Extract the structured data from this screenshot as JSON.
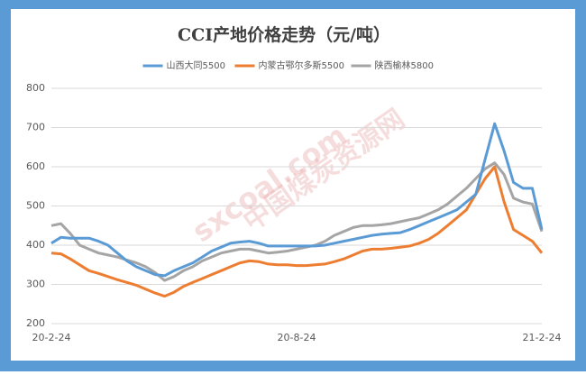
{
  "chart_data": {
    "type": "line",
    "title": "CCI产地价格走势（元/吨）",
    "watermark": [
      "sxcoal.com",
      "中国煤炭资源网"
    ],
    "categories": [
      "20-2-24",
      null,
      null,
      null,
      null,
      null,
      null,
      null,
      null,
      null,
      null,
      null,
      null,
      null,
      null,
      null,
      null,
      null,
      null,
      null,
      null,
      null,
      null,
      null,
      null,
      null,
      "20-8-24",
      null,
      null,
      null,
      null,
      null,
      null,
      null,
      null,
      null,
      null,
      null,
      null,
      null,
      null,
      null,
      null,
      null,
      null,
      null,
      null,
      null,
      null,
      null,
      null,
      null,
      "21-2-24"
    ],
    "series": [
      {
        "name": "山西大同5500",
        "color": "#5b9bd5",
        "values": [
          405,
          420,
          418,
          418,
          418,
          410,
          400,
          380,
          360,
          345,
          335,
          325,
          322,
          335,
          345,
          355,
          370,
          385,
          395,
          405,
          408,
          410,
          405,
          398,
          398,
          398,
          398,
          398,
          398,
          400,
          405,
          410,
          415,
          420,
          425,
          428,
          430,
          432,
          440,
          450,
          460,
          470,
          480,
          490,
          510,
          530,
          620,
          710,
          640,
          560,
          545,
          545,
          440
        ]
      },
      {
        "name": "内蒙古鄂尔多斯5500",
        "color": "#ed7d31",
        "values": [
          380,
          378,
          365,
          350,
          335,
          328,
          320,
          312,
          305,
          298,
          288,
          278,
          270,
          280,
          295,
          305,
          315,
          325,
          335,
          345,
          355,
          360,
          358,
          352,
          350,
          350,
          348,
          348,
          350,
          352,
          358,
          365,
          375,
          385,
          390,
          390,
          392,
          395,
          398,
          405,
          415,
          430,
          450,
          470,
          490,
          530,
          570,
          600,
          510,
          440,
          425,
          410,
          380
        ]
      },
      {
        "name": "陕西榆林5800",
        "color": "#a5a5a5",
        "values": [
          450,
          455,
          430,
          400,
          390,
          380,
          375,
          370,
          362,
          355,
          345,
          330,
          310,
          320,
          335,
          345,
          360,
          370,
          380,
          385,
          390,
          390,
          385,
          380,
          382,
          385,
          390,
          395,
          400,
          410,
          425,
          435,
          445,
          450,
          450,
          452,
          455,
          460,
          465,
          470,
          480,
          490,
          505,
          525,
          545,
          570,
          595,
          610,
          580,
          520,
          510,
          505,
          435
        ]
      }
    ],
    "ylim": [
      200,
      800
    ],
    "yticks": [
      200,
      300,
      400,
      500,
      600,
      700,
      800
    ],
    "grid": true,
    "legend": "top"
  }
}
